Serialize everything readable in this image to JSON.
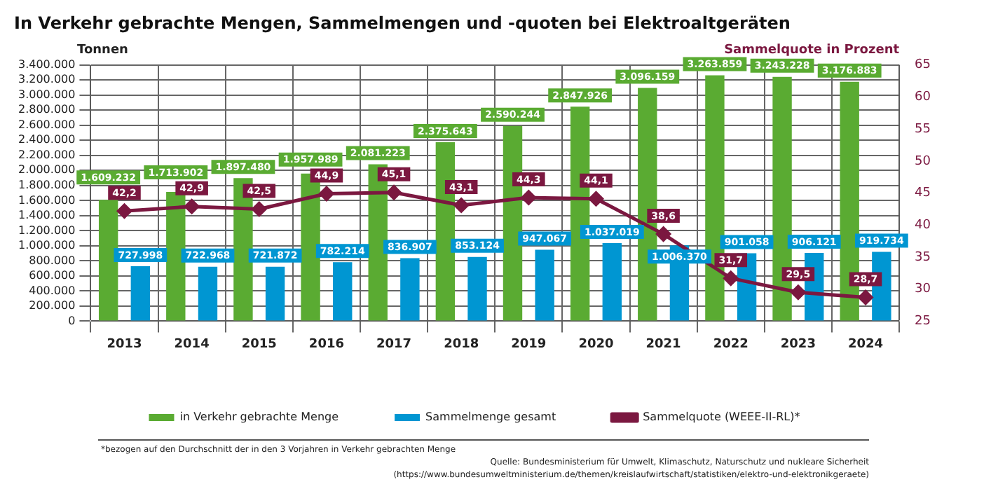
{
  "chart_data": {
    "type": "bar",
    "title": "In Verkehr gebrachte Mengen, Sammelmengen und -quoten bei Elektroaltgeräten",
    "ylabel": "Tonnen",
    "y2label": "Sammelquote in Prozent",
    "categories": [
      "2013",
      "2014",
      "2015",
      "2016",
      "2017",
      "2018",
      "2019",
      "2020",
      "2021",
      "2022",
      "2023",
      "2024"
    ],
    "series": [
      {
        "name": "in Verkehr gebrachte Menge",
        "color": "#5aab32",
        "values": [
          1609232,
          1713902,
          1897480,
          1957989,
          2081223,
          2375643,
          2590244,
          2847926,
          3096159,
          3263859,
          3243228,
          3176883
        ],
        "value_labels": [
          "1.609.232",
          "1.713.902",
          "1.897.480",
          "1.957.989",
          "2.081.223",
          "2.375.643",
          "2.590.244",
          "2.847.926",
          "3.096.159",
          "3.263.859",
          "3.243.228",
          "3.176.883"
        ]
      },
      {
        "name": "Sammelmenge gesamt",
        "color": "#0096d2",
        "values": [
          727998,
          722968,
          721872,
          782214,
          836907,
          853124,
          947067,
          1037019,
          1006370,
          901058,
          906121,
          919734
        ],
        "value_labels": [
          "727.998",
          "722.968",
          "721.872",
          "782.214",
          "836.907",
          "853.124",
          "947.067",
          "1.037.019",
          "1.006.370",
          "901.058",
          "906.121",
          "919.734"
        ]
      },
      {
        "name": "Sammelquote (WEEE-II-RL)*",
        "type": "line",
        "axis": "y2",
        "color": "#7b1840",
        "marker": "diamond",
        "values": [
          42.2,
          42.9,
          42.5,
          44.9,
          45.1,
          43.1,
          44.3,
          44.1,
          38.6,
          31.7,
          29.5,
          28.7
        ],
        "value_labels": [
          "42,2",
          "42,9",
          "42,5",
          "44,9",
          "45,1",
          "43,1",
          "44,3",
          "44,1",
          "38,6",
          "31,7",
          "29,5",
          "28,7"
        ]
      }
    ],
    "ylim": [
      0,
      3400000
    ],
    "yticks": [
      {
        "value": 0,
        "label": "0"
      },
      {
        "value": 200000,
        "label": "200.000"
      },
      {
        "value": 400000,
        "label": "400.000"
      },
      {
        "value": 600000,
        "label": "600.000"
      },
      {
        "value": 800000,
        "label": "800.000"
      },
      {
        "value": 1000000,
        "label": "1.000.000"
      },
      {
        "value": 1200000,
        "label": "1.200.000"
      },
      {
        "value": 1400000,
        "label": "1.400.000"
      },
      {
        "value": 1600000,
        "label": "1.600.000"
      },
      {
        "value": 1800000,
        "label": "1.800.000"
      },
      {
        "value": 2000000,
        "label": "2.000.000"
      },
      {
        "value": 2200000,
        "label": "2.200.000"
      },
      {
        "value": 2400000,
        "label": "2.400.000"
      },
      {
        "value": 2600000,
        "label": "2.600.000"
      },
      {
        "value": 2800000,
        "label": "2.800.000"
      },
      {
        "value": 3000000,
        "label": "3.000.000"
      },
      {
        "value": 3200000,
        "label": "3.200.000"
      },
      {
        "value": 3400000,
        "label": "3.400.000"
      }
    ],
    "y2lim": [
      25,
      65
    ],
    "y2ticks": [
      25,
      30,
      35,
      40,
      45,
      50,
      55,
      60,
      65
    ],
    "grid": true,
    "legend": "bottom",
    "annotations": [
      "*bezogen auf den Durchschnitt der in den 3 Vorjahren in Verkehr gebrachten Menge",
      "Quelle: Bundesministerium für Umwelt, Klimaschutz, Naturschutz und nukleare Sicherheit",
      "(https://www.bundesumweltministerium.de/themen/kreislaufwirtschaft/statistiken/elektro-und-elektronikgeraete)"
    ]
  }
}
